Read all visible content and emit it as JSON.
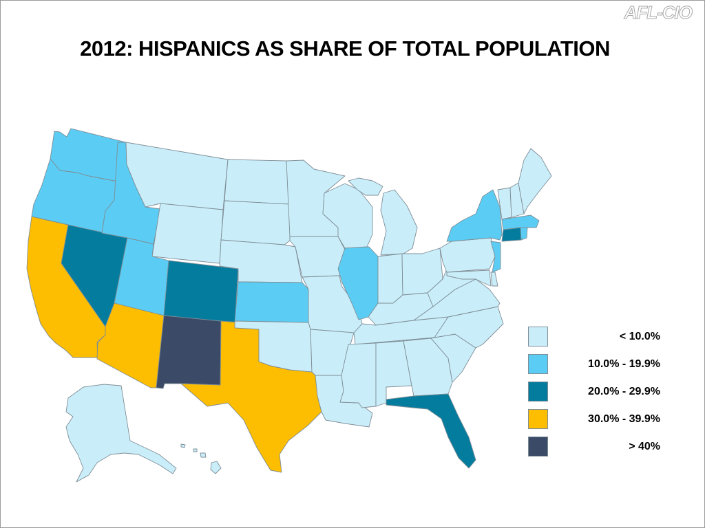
{
  "brand": "AFL-CIO",
  "title": "2012: HISPANICS AS SHARE OF TOTAL POPULATION",
  "legend": [
    {
      "label": "< 10.0%",
      "color": "#c9eefa"
    },
    {
      "label": "10.0% - 19.9%",
      "color": "#5bcdf4"
    },
    {
      "label": "20.0% - 29.9%",
      "color": "#047c9e"
    },
    {
      "label": "30.0% - 39.9%",
      "color": "#fdbd00"
    },
    {
      "label": "> 40%",
      "color": "#3a4a67"
    }
  ],
  "states": [
    {
      "name": "WA",
      "level": 1
    },
    {
      "name": "OR",
      "level": 1
    },
    {
      "name": "CA",
      "level": 3
    },
    {
      "name": "NV",
      "level": 2
    },
    {
      "name": "ID",
      "level": 1
    },
    {
      "name": "MT",
      "level": 0
    },
    {
      "name": "WY",
      "level": 0
    },
    {
      "name": "UT",
      "level": 1
    },
    {
      "name": "AZ",
      "level": 3
    },
    {
      "name": "CO",
      "level": 2
    },
    {
      "name": "NM",
      "level": 4
    },
    {
      "name": "TX",
      "level": 3
    },
    {
      "name": "ND",
      "level": 0
    },
    {
      "name": "SD",
      "level": 0
    },
    {
      "name": "NE",
      "level": 0
    },
    {
      "name": "KS",
      "level": 1
    },
    {
      "name": "OK",
      "level": 0
    },
    {
      "name": "MN",
      "level": 0
    },
    {
      "name": "IA",
      "level": 0
    },
    {
      "name": "MO",
      "level": 0
    },
    {
      "name": "AR",
      "level": 0
    },
    {
      "name": "LA",
      "level": 0
    },
    {
      "name": "WI",
      "level": 0
    },
    {
      "name": "IL",
      "level": 1
    },
    {
      "name": "MI",
      "level": 0
    },
    {
      "name": "IN",
      "level": 0
    },
    {
      "name": "OH",
      "level": 0
    },
    {
      "name": "KY",
      "level": 0
    },
    {
      "name": "TN",
      "level": 0
    },
    {
      "name": "MS",
      "level": 0
    },
    {
      "name": "AL",
      "level": 0
    },
    {
      "name": "GA",
      "level": 0
    },
    {
      "name": "FL",
      "level": 2
    },
    {
      "name": "SC",
      "level": 0
    },
    {
      "name": "NC",
      "level": 0
    },
    {
      "name": "VA",
      "level": 0
    },
    {
      "name": "WV",
      "level": 0
    },
    {
      "name": "PA",
      "level": 0
    },
    {
      "name": "NY",
      "level": 1
    },
    {
      "name": "NJ",
      "level": 1
    },
    {
      "name": "DE",
      "level": 0
    },
    {
      "name": "MD",
      "level": 0
    },
    {
      "name": "CT",
      "level": 2
    },
    {
      "name": "RI",
      "level": 1
    },
    {
      "name": "MA",
      "level": 1
    },
    {
      "name": "VT",
      "level": 0
    },
    {
      "name": "NH",
      "level": 0
    },
    {
      "name": "ME",
      "level": 0
    },
    {
      "name": "AK",
      "level": 0
    },
    {
      "name": "HI",
      "level": 0
    }
  ]
}
